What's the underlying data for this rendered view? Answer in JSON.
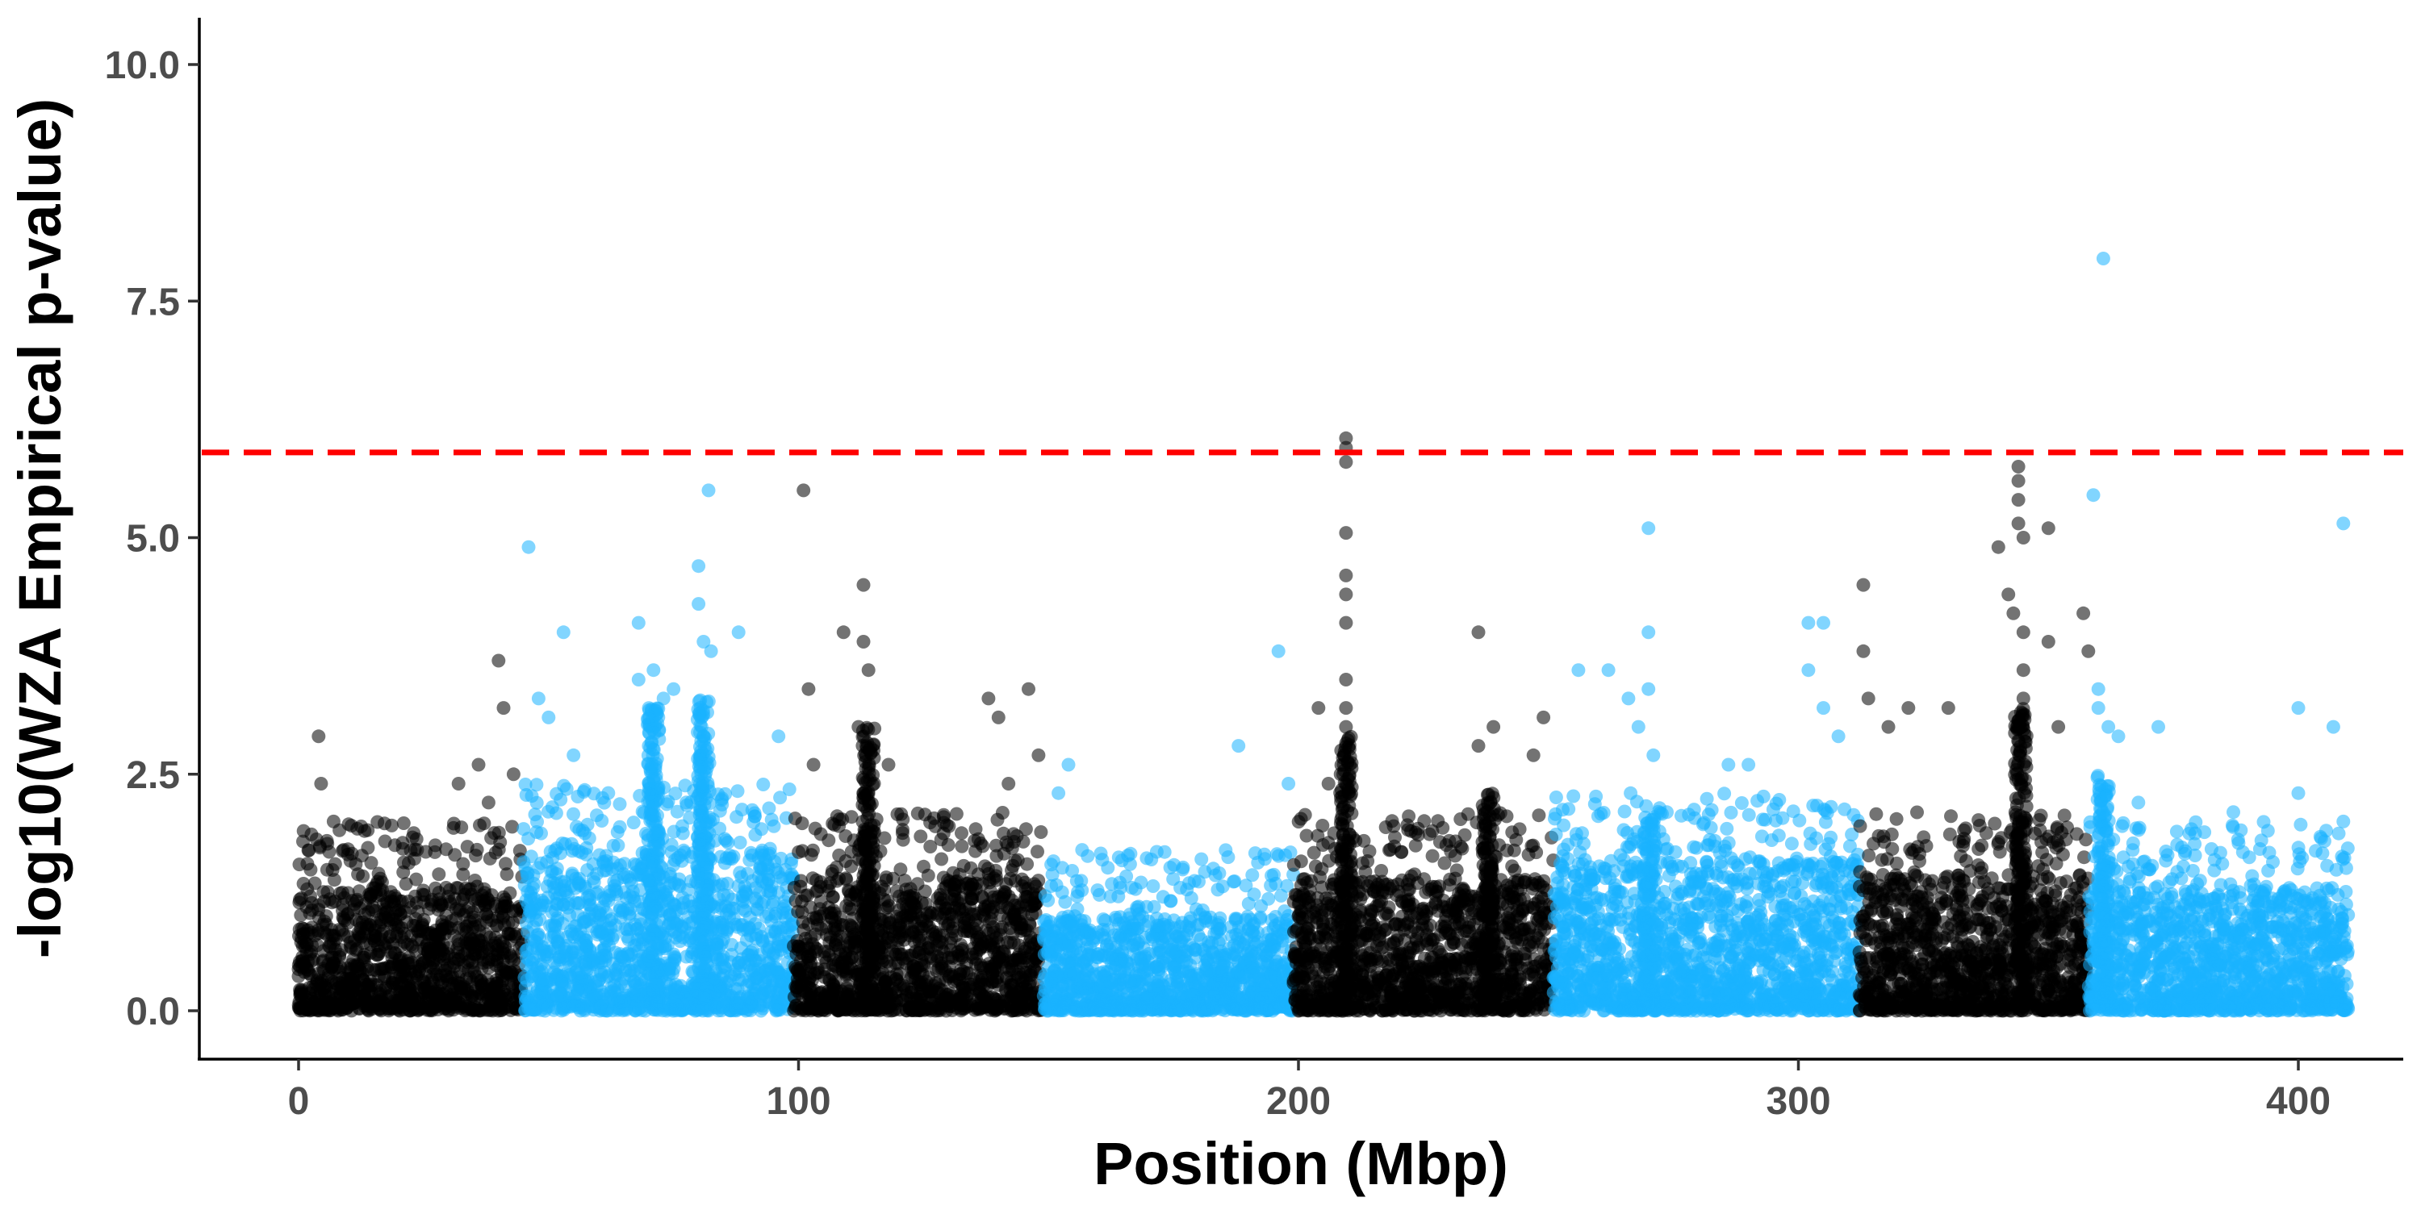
{
  "chart_data": {
    "type": "scatter",
    "subtype": "manhattan",
    "title": "",
    "xlabel": "Position (Mbp)",
    "ylabel": "-log10(WZA Empirical p-value)",
    "xlim": [
      -20,
      428
    ],
    "ylim": [
      -0.5,
      10.5
    ],
    "x_ticks": [
      0,
      100,
      200,
      300,
      400
    ],
    "x_tick_labels": [
      "0",
      "100",
      "200",
      "300",
      "400"
    ],
    "y_ticks": [
      0,
      2.5,
      5,
      7.5,
      10
    ],
    "y_tick_labels": [
      "0.0",
      "2.5",
      "5.0",
      "7.5",
      "10.0"
    ],
    "grid": false,
    "legend": "none",
    "threshold": {
      "value": 5.9,
      "color": "#ff0000",
      "style": "dashed"
    },
    "colors": {
      "black": "#000000",
      "blue": "#1ab2ff",
      "threshold": "#ff0000"
    },
    "chromosomes": [
      {
        "start": 0,
        "end": 45,
        "color": "black",
        "base_max": 1.3
      },
      {
        "start": 45,
        "end": 99,
        "color": "blue",
        "base_max": 1.7
      },
      {
        "start": 99,
        "end": 149,
        "color": "black",
        "base_max": 1.4
      },
      {
        "start": 149,
        "end": 199,
        "color": "blue",
        "base_max": 1.0
      },
      {
        "start": 199,
        "end": 251,
        "color": "black",
        "base_max": 1.4
      },
      {
        "start": 251,
        "end": 312,
        "color": "blue",
        "base_max": 1.6
      },
      {
        "start": 312,
        "end": 358,
        "color": "black",
        "base_max": 1.4
      },
      {
        "start": 358,
        "end": 410,
        "color": "blue",
        "base_max": 1.3
      }
    ],
    "peaks": [
      {
        "x": 1,
        "y": 1.9,
        "color": "black"
      },
      {
        "x": 4,
        "y": 2.9,
        "color": "black"
      },
      {
        "x": 4.5,
        "y": 2.4,
        "color": "black"
      },
      {
        "x": 7,
        "y": 2.0,
        "color": "black"
      },
      {
        "x": 9,
        "y": 1.7,
        "color": "black"
      },
      {
        "x": 32,
        "y": 2.4,
        "color": "black"
      },
      {
        "x": 36,
        "y": 2.6,
        "color": "black"
      },
      {
        "x": 38,
        "y": 2.2,
        "color": "black"
      },
      {
        "x": 40,
        "y": 3.7,
        "color": "black"
      },
      {
        "x": 41,
        "y": 3.2,
        "color": "black"
      },
      {
        "x": 43,
        "y": 2.5,
        "color": "black"
      },
      {
        "x": 46,
        "y": 4.9,
        "color": "blue"
      },
      {
        "x": 48,
        "y": 3.3,
        "color": "blue"
      },
      {
        "x": 50,
        "y": 3.1,
        "color": "blue"
      },
      {
        "x": 53,
        "y": 4.0,
        "color": "blue"
      },
      {
        "x": 55,
        "y": 2.7,
        "color": "blue"
      },
      {
        "x": 68,
        "y": 4.1,
        "color": "blue"
      },
      {
        "x": 68,
        "y": 3.5,
        "color": "blue"
      },
      {
        "x": 71,
        "y": 3.6,
        "color": "blue"
      },
      {
        "x": 73,
        "y": 3.3,
        "color": "blue"
      },
      {
        "x": 75,
        "y": 3.4,
        "color": "blue"
      },
      {
        "x": 80,
        "y": 4.7,
        "color": "blue"
      },
      {
        "x": 80,
        "y": 4.3,
        "color": "blue"
      },
      {
        "x": 81,
        "y": 3.9,
        "color": "blue"
      },
      {
        "x": 82,
        "y": 5.5,
        "color": "blue"
      },
      {
        "x": 82.5,
        "y": 3.8,
        "color": "blue"
      },
      {
        "x": 88,
        "y": 4.0,
        "color": "blue"
      },
      {
        "x": 96,
        "y": 2.9,
        "color": "blue"
      },
      {
        "x": 101,
        "y": 5.5,
        "color": "black"
      },
      {
        "x": 102,
        "y": 3.4,
        "color": "black"
      },
      {
        "x": 103,
        "y": 2.6,
        "color": "black"
      },
      {
        "x": 109,
        "y": 4.0,
        "color": "black"
      },
      {
        "x": 112,
        "y": 3.0,
        "color": "black"
      },
      {
        "x": 113,
        "y": 4.5,
        "color": "black"
      },
      {
        "x": 113,
        "y": 3.9,
        "color": "black"
      },
      {
        "x": 114,
        "y": 3.6,
        "color": "black"
      },
      {
        "x": 118,
        "y": 2.6,
        "color": "black"
      },
      {
        "x": 138,
        "y": 3.3,
        "color": "black"
      },
      {
        "x": 140,
        "y": 3.1,
        "color": "black"
      },
      {
        "x": 142,
        "y": 2.4,
        "color": "black"
      },
      {
        "x": 146,
        "y": 3.4,
        "color": "black"
      },
      {
        "x": 148,
        "y": 2.7,
        "color": "black"
      },
      {
        "x": 152,
        "y": 2.3,
        "color": "blue"
      },
      {
        "x": 154,
        "y": 2.6,
        "color": "blue"
      },
      {
        "x": 188,
        "y": 2.8,
        "color": "blue"
      },
      {
        "x": 196,
        "y": 3.8,
        "color": "blue"
      },
      {
        "x": 198,
        "y": 2.4,
        "color": "blue"
      },
      {
        "x": 204,
        "y": 3.2,
        "color": "black"
      },
      {
        "x": 206,
        "y": 2.4,
        "color": "black"
      },
      {
        "x": 209.5,
        "y": 6.05,
        "color": "black"
      },
      {
        "x": 209.5,
        "y": 5.95,
        "color": "black"
      },
      {
        "x": 209.5,
        "y": 5.8,
        "color": "black"
      },
      {
        "x": 209.5,
        "y": 5.05,
        "color": "black"
      },
      {
        "x": 209.5,
        "y": 4.6,
        "color": "black"
      },
      {
        "x": 209.5,
        "y": 4.4,
        "color": "black"
      },
      {
        "x": 209.5,
        "y": 4.1,
        "color": "black"
      },
      {
        "x": 209.5,
        "y": 3.5,
        "color": "black"
      },
      {
        "x": 209.5,
        "y": 3.2,
        "color": "black"
      },
      {
        "x": 209.5,
        "y": 3.0,
        "color": "black"
      },
      {
        "x": 236,
        "y": 4.0,
        "color": "black"
      },
      {
        "x": 236,
        "y": 2.8,
        "color": "black"
      },
      {
        "x": 239,
        "y": 3.0,
        "color": "black"
      },
      {
        "x": 247,
        "y": 2.7,
        "color": "black"
      },
      {
        "x": 249,
        "y": 3.1,
        "color": "black"
      },
      {
        "x": 256,
        "y": 3.6,
        "color": "blue"
      },
      {
        "x": 262,
        "y": 3.6,
        "color": "blue"
      },
      {
        "x": 266,
        "y": 3.3,
        "color": "blue"
      },
      {
        "x": 268,
        "y": 3.0,
        "color": "blue"
      },
      {
        "x": 270,
        "y": 5.1,
        "color": "blue"
      },
      {
        "x": 270,
        "y": 4.0,
        "color": "blue"
      },
      {
        "x": 270,
        "y": 3.4,
        "color": "blue"
      },
      {
        "x": 271,
        "y": 2.7,
        "color": "blue"
      },
      {
        "x": 286,
        "y": 2.6,
        "color": "blue"
      },
      {
        "x": 290,
        "y": 2.6,
        "color": "blue"
      },
      {
        "x": 302,
        "y": 4.1,
        "color": "blue"
      },
      {
        "x": 302,
        "y": 3.6,
        "color": "blue"
      },
      {
        "x": 305,
        "y": 4.1,
        "color": "blue"
      },
      {
        "x": 305,
        "y": 3.2,
        "color": "blue"
      },
      {
        "x": 308,
        "y": 2.9,
        "color": "blue"
      },
      {
        "x": 313,
        "y": 4.5,
        "color": "black"
      },
      {
        "x": 313,
        "y": 3.8,
        "color": "black"
      },
      {
        "x": 314,
        "y": 3.3,
        "color": "black"
      },
      {
        "x": 318,
        "y": 3.0,
        "color": "black"
      },
      {
        "x": 322,
        "y": 3.2,
        "color": "black"
      },
      {
        "x": 330,
        "y": 3.2,
        "color": "black"
      },
      {
        "x": 340,
        "y": 4.9,
        "color": "black"
      },
      {
        "x": 342,
        "y": 4.4,
        "color": "black"
      },
      {
        "x": 343,
        "y": 4.2,
        "color": "black"
      },
      {
        "x": 344,
        "y": 5.75,
        "color": "black"
      },
      {
        "x": 344,
        "y": 5.6,
        "color": "black"
      },
      {
        "x": 344,
        "y": 5.4,
        "color": "black"
      },
      {
        "x": 344,
        "y": 5.15,
        "color": "black"
      },
      {
        "x": 345,
        "y": 5.0,
        "color": "black"
      },
      {
        "x": 345,
        "y": 4.0,
        "color": "black"
      },
      {
        "x": 345,
        "y": 3.6,
        "color": "black"
      },
      {
        "x": 345,
        "y": 3.3,
        "color": "black"
      },
      {
        "x": 350,
        "y": 5.1,
        "color": "black"
      },
      {
        "x": 350,
        "y": 3.9,
        "color": "black"
      },
      {
        "x": 352,
        "y": 3.0,
        "color": "black"
      },
      {
        "x": 357,
        "y": 4.2,
        "color": "black"
      },
      {
        "x": 358,
        "y": 3.8,
        "color": "black"
      },
      {
        "x": 359,
        "y": 5.45,
        "color": "blue"
      },
      {
        "x": 360,
        "y": 3.4,
        "color": "blue"
      },
      {
        "x": 360,
        "y": 3.2,
        "color": "blue"
      },
      {
        "x": 361,
        "y": 7.95,
        "color": "blue"
      },
      {
        "x": 362,
        "y": 3.0,
        "color": "blue"
      },
      {
        "x": 364,
        "y": 2.9,
        "color": "blue"
      },
      {
        "x": 368,
        "y": 2.2,
        "color": "blue"
      },
      {
        "x": 372,
        "y": 3.0,
        "color": "blue"
      },
      {
        "x": 387,
        "y": 2.1,
        "color": "blue"
      },
      {
        "x": 400,
        "y": 3.2,
        "color": "blue"
      },
      {
        "x": 400,
        "y": 2.3,
        "color": "blue"
      },
      {
        "x": 407,
        "y": 3.0,
        "color": "blue"
      },
      {
        "x": 409,
        "y": 5.15,
        "color": "blue"
      },
      {
        "x": 409,
        "y": 2.0,
        "color": "blue"
      }
    ],
    "dense_columns": [
      {
        "x": 71,
        "ymax": 3.2,
        "color": "blue"
      },
      {
        "x": 81,
        "ymax": 3.3,
        "color": "blue"
      },
      {
        "x": 114,
        "ymax": 3.0,
        "color": "black"
      },
      {
        "x": 209.5,
        "ymax": 2.9,
        "color": "black"
      },
      {
        "x": 238,
        "ymax": 2.3,
        "color": "black"
      },
      {
        "x": 270,
        "ymax": 2.1,
        "color": "blue"
      },
      {
        "x": 344.5,
        "ymax": 3.2,
        "color": "black"
      },
      {
        "x": 361,
        "ymax": 2.5,
        "color": "blue"
      }
    ]
  }
}
